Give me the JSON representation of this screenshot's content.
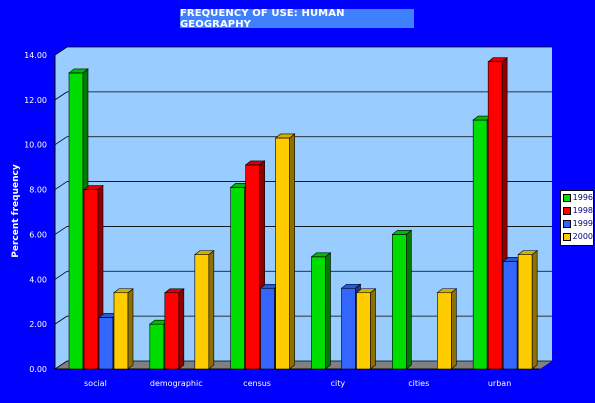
{
  "chart_data": {
    "type": "bar",
    "title": "FREQUENCY OF USE: HUMAN GEOGRAPHY",
    "xlabel": "",
    "ylabel": "Percent frequency",
    "categories": [
      "social",
      "demographic",
      "census",
      "city",
      "cities",
      "urban"
    ],
    "series": [
      {
        "name": "1996",
        "color": "#00dd00",
        "values": [
          13.2,
          2.0,
          8.1,
          5.0,
          6.0,
          11.1
        ]
      },
      {
        "name": "1998",
        "color": "#ff0000",
        "values": [
          8.0,
          3.4,
          9.1,
          0,
          0,
          13.7
        ]
      },
      {
        "name": "1999",
        "color": "#3366ff",
        "values": [
          2.3,
          0,
          3.6,
          3.6,
          0,
          4.8
        ]
      },
      {
        "name": "2000",
        "color": "#ffcc00",
        "values": [
          3.4,
          5.1,
          10.3,
          3.4,
          3.4,
          5.1
        ]
      }
    ],
    "ylim": [
      0,
      14
    ],
    "yticks": [
      "0.00",
      "2.00",
      "4.00",
      "6.00",
      "8.00",
      "10.00",
      "12.00",
      "14.00"
    ],
    "grid": true,
    "legend_position": "right"
  }
}
